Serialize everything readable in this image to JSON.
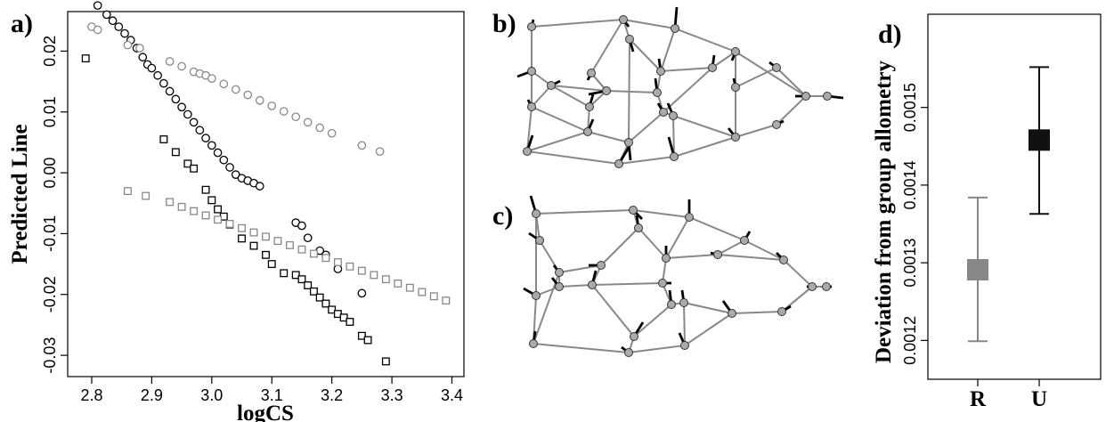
{
  "panels": {
    "a": "a)",
    "b": "b)",
    "c": "c)",
    "d": "d)"
  },
  "chart_data": [
    {
      "panel": "a",
      "type": "scatter",
      "xlabel": "logCS",
      "ylabel": "Predicted Line",
      "xlim": [
        2.76,
        3.42
      ],
      "ylim": [
        -0.0335,
        0.0265
      ],
      "x_ticks": [
        2.8,
        2.9,
        3.0,
        3.1,
        3.2,
        3.3,
        3.4
      ],
      "x_tick_labels": [
        "2.8",
        "2.9",
        "3.0",
        "3.1",
        "3.2",
        "3.3",
        "3.4"
      ],
      "y_ticks": [
        0.02,
        0.01,
        0.0,
        -0.01,
        -0.02,
        -0.03
      ],
      "y_tick_labels": [
        "0.02",
        "0.01",
        "0.00",
        "-0.01",
        "-0.02",
        "-0.03"
      ],
      "series": [
        {
          "marker": "circle",
          "color": "#000000",
          "x": [
            2.81,
            2.825,
            2.835,
            2.845,
            2.855,
            2.865,
            2.875,
            2.885,
            2.893,
            2.9,
            2.91,
            2.92,
            2.93,
            2.94,
            2.95,
            2.96,
            2.97,
            2.98,
            2.99,
            3.0,
            3.01,
            3.02,
            3.03,
            3.04,
            3.05,
            3.06,
            3.07,
            3.08
          ],
          "y": [
            0.0275,
            0.026,
            0.025,
            0.024,
            0.0229,
            0.0218,
            0.0205,
            0.019,
            0.0178,
            0.0172,
            0.016,
            0.0147,
            0.0134,
            0.0121,
            0.0108,
            0.0096,
            0.0083,
            0.007,
            0.0057,
            0.0045,
            0.0033,
            0.0021,
            0.0009,
            -0.0003,
            -0.0009,
            -0.0013,
            -0.0017,
            -0.0022
          ]
        },
        {
          "marker": "circle",
          "color": "#888888",
          "x": [
            2.8,
            2.81,
            2.86,
            2.88,
            2.93,
            2.95,
            2.97,
            2.98,
            2.99,
            3.0,
            3.02,
            3.04,
            3.06,
            3.08,
            3.1,
            3.12,
            3.14,
            3.16,
            3.18,
            3.2,
            3.25,
            3.28
          ],
          "y": [
            0.024,
            0.0235,
            0.021,
            0.0205,
            0.0183,
            0.0175,
            0.0166,
            0.0163,
            0.016,
            0.0155,
            0.0146,
            0.0137,
            0.0128,
            0.0119,
            0.011,
            0.0101,
            0.0092,
            0.0083,
            0.0074,
            0.0065,
            0.0045,
            0.0035
          ]
        },
        {
          "marker": "square",
          "color": "#000000",
          "x": [
            2.79,
            2.92,
            2.94,
            2.96,
            2.97,
            2.99,
            3.0,
            3.01,
            3.02,
            3.03,
            3.05,
            3.07,
            3.09,
            3.1,
            3.12,
            3.14,
            3.15,
            3.16,
            3.17,
            3.18,
            3.19,
            3.2,
            3.21,
            3.22,
            3.23,
            3.25,
            3.26,
            3.29
          ],
          "y": [
            0.0188,
            0.0055,
            0.0034,
            0.0015,
            0.0007,
            -0.0028,
            -0.0045,
            -0.006,
            -0.0072,
            -0.0085,
            -0.0108,
            -0.012,
            -0.0135,
            -0.015,
            -0.0165,
            -0.0168,
            -0.0175,
            -0.0185,
            -0.0195,
            -0.0205,
            -0.0215,
            -0.0225,
            -0.0232,
            -0.0238,
            -0.0245,
            -0.0268,
            -0.0275,
            -0.031
          ]
        },
        {
          "marker": "circle",
          "color": "#000000",
          "x": [
            3.14,
            3.15,
            3.16,
            3.18,
            3.19,
            3.21,
            3.25
          ],
          "y": [
            -0.0082,
            -0.0087,
            -0.0107,
            -0.0128,
            -0.0135,
            -0.0158,
            -0.0198
          ]
        },
        {
          "marker": "square",
          "color": "#888888",
          "x": [
            2.86,
            2.89,
            2.93,
            2.95,
            2.97,
            2.99,
            3.01,
            3.03,
            3.05,
            3.07,
            3.09,
            3.11,
            3.13,
            3.15,
            3.17,
            3.19,
            3.21,
            3.23,
            3.25,
            3.27,
            3.29,
            3.31,
            3.33,
            3.35,
            3.37,
            3.39
          ],
          "y": [
            -0.003,
            -0.0038,
            -0.0048,
            -0.0056,
            -0.0063,
            -0.007,
            -0.0077,
            -0.0084,
            -0.0091,
            -0.0098,
            -0.0105,
            -0.0112,
            -0.0119,
            -0.0126,
            -0.0133,
            -0.014,
            -0.0147,
            -0.0154,
            -0.0161,
            -0.0168,
            -0.0175,
            -0.0182,
            -0.0189,
            -0.0196,
            -0.0203,
            -0.021
          ]
        }
      ]
    },
    {
      "panel": "d",
      "type": "errorbar",
      "ylabel": "Deviation from group allometry",
      "ylim": [
        0.00115,
        0.00162
      ],
      "y_ticks": [
        0.0012,
        0.0013,
        0.0014,
        0.0015
      ],
      "y_tick_labels": [
        "0.0012",
        "0.0013",
        "0.0014",
        "0.0015"
      ],
      "categories": [
        "R",
        "U"
      ],
      "values": [
        0.001291,
        0.001458
      ],
      "lower": [
        0.001199,
        0.001363
      ],
      "upper": [
        0.001384,
        0.001552
      ],
      "colors": [
        "#888888",
        "#111111"
      ]
    }
  ],
  "landmarks": {
    "b": {
      "points": [
        [
          597,
          30
        ],
        [
          597,
          80
        ],
        [
          619,
          96
        ],
        [
          597,
          120
        ],
        [
          592,
          170
        ],
        [
          664,
          82
        ],
        [
          681,
          102
        ],
        [
          662,
          120
        ],
        [
          660,
          148
        ],
        [
          700,
          22
        ],
        [
          707,
          44
        ],
        [
          758,
          32
        ],
        [
          742,
          80
        ],
        [
          738,
          104
        ],
        [
          745,
          126
        ],
        [
          706,
          160
        ],
        [
          695,
          184
        ],
        [
          756,
          130
        ],
        [
          757,
          176
        ],
        [
          800,
          76
        ],
        [
          826,
          58
        ],
        [
          826,
          98
        ],
        [
          826,
          154
        ],
        [
          872,
          76
        ],
        [
          872,
          140
        ],
        [
          905,
          108
        ],
        [
          929,
          108
        ]
      ],
      "vectors": [
        [
          2,
          -8
        ],
        [
          -16,
          6
        ],
        [
          10,
          -5
        ],
        [
          -4,
          -8
        ],
        [
          6,
          -18
        ],
        [
          -4,
          8
        ],
        [
          -20,
          4
        ],
        [
          4,
          -14
        ],
        [
          6,
          -14
        ],
        [
          6,
          8
        ],
        [
          4,
          14
        ],
        [
          2,
          -24
        ],
        [
          -2,
          -14
        ],
        [
          -2,
          -16
        ],
        [
          -6,
          -10
        ],
        [
          2,
          20
        ],
        [
          12,
          -20
        ],
        [
          -6,
          -14
        ],
        [
          -6,
          -22
        ],
        [
          2,
          -14
        ],
        [
          -4,
          10
        ],
        [
          -2,
          -10
        ],
        [
          -8,
          -10
        ],
        [
          -8,
          -6
        ],
        [
          8,
          -4
        ],
        [
          -12,
          0
        ],
        [
          18,
          2
        ]
      ],
      "edges": [
        [
          0,
          9
        ],
        [
          9,
          11
        ],
        [
          11,
          20
        ],
        [
          20,
          25
        ],
        [
          25,
          24
        ],
        [
          24,
          22
        ],
        [
          22,
          18
        ],
        [
          18,
          16
        ],
        [
          16,
          4
        ],
        [
          4,
          3
        ],
        [
          3,
          1
        ],
        [
          1,
          0
        ],
        [
          1,
          2
        ],
        [
          2,
          3
        ],
        [
          2,
          6
        ],
        [
          6,
          5
        ],
        [
          5,
          9
        ],
        [
          5,
          6
        ],
        [
          9,
          10
        ],
        [
          10,
          12
        ],
        [
          12,
          11
        ],
        [
          10,
          15
        ],
        [
          15,
          16
        ],
        [
          6,
          7
        ],
        [
          7,
          8
        ],
        [
          8,
          15
        ],
        [
          6,
          13
        ],
        [
          13,
          12
        ],
        [
          13,
          14
        ],
        [
          14,
          17
        ],
        [
          17,
          18
        ],
        [
          14,
          15
        ],
        [
          17,
          22
        ],
        [
          14,
          19
        ],
        [
          19,
          12
        ],
        [
          19,
          20
        ],
        [
          20,
          21
        ],
        [
          21,
          23
        ],
        [
          23,
          25
        ],
        [
          21,
          22
        ],
        [
          2,
          7
        ],
        [
          4,
          8
        ],
        [
          3,
          8
        ],
        [
          0,
          1
        ],
        [
          25,
          26
        ]
      ]
    },
    "c": {
      "points": [
        [
          602,
          240
        ],
        [
          606,
          270
        ],
        [
          628,
          306
        ],
        [
          628,
          322
        ],
        [
          602,
          332
        ],
        [
          599,
          386
        ],
        [
          675,
          298
        ],
        [
          665,
          320
        ],
        [
          711,
          236
        ],
        [
          717,
          256
        ],
        [
          774,
          244
        ],
        [
          748,
          290
        ],
        [
          744,
          318
        ],
        [
          768,
          340
        ],
        [
          754,
          342
        ],
        [
          712,
          378
        ],
        [
          706,
          396
        ],
        [
          769,
          388
        ],
        [
          822,
          352
        ],
        [
          836,
          270
        ],
        [
          806,
          286
        ],
        [
          880,
          292
        ],
        [
          878,
          350
        ],
        [
          912,
          322
        ],
        [
          928,
          322
        ]
      ],
      "vectors": [
        [
          -6,
          -20
        ],
        [
          -12,
          -8
        ],
        [
          -6,
          -8
        ],
        [
          -8,
          -10
        ],
        [
          -14,
          -8
        ],
        [
          2,
          -14
        ],
        [
          -14,
          0
        ],
        [
          4,
          -16
        ],
        [
          10,
          10
        ],
        [
          -2,
          -14
        ],
        [
          0,
          -20
        ],
        [
          0,
          -14
        ],
        [
          10,
          0
        ],
        [
          -2,
          -14
        ],
        [
          -2,
          -16
        ],
        [
          10,
          -16
        ],
        [
          -8,
          -6
        ],
        [
          -6,
          -14
        ],
        [
          -10,
          -14
        ],
        [
          6,
          -10
        ],
        [
          -8,
          -2
        ],
        [
          -8,
          -8
        ],
        [
          10,
          -6
        ],
        [
          -6,
          0
        ],
        [
          6,
          0
        ]
      ],
      "edges": [
        [
          0,
          8
        ],
        [
          8,
          10
        ],
        [
          10,
          19
        ],
        [
          19,
          21
        ],
        [
          21,
          23
        ],
        [
          23,
          22
        ],
        [
          22,
          18
        ],
        [
          18,
          17
        ],
        [
          17,
          16
        ],
        [
          16,
          5
        ],
        [
          5,
          4
        ],
        [
          4,
          3
        ],
        [
          3,
          2
        ],
        [
          2,
          1
        ],
        [
          1,
          0
        ],
        [
          8,
          9
        ],
        [
          9,
          11
        ],
        [
          11,
          10
        ],
        [
          9,
          6
        ],
        [
          6,
          7
        ],
        [
          7,
          15
        ],
        [
          15,
          16
        ],
        [
          6,
          2
        ],
        [
          3,
          7
        ],
        [
          7,
          12
        ],
        [
          12,
          11
        ],
        [
          12,
          14
        ],
        [
          14,
          13
        ],
        [
          13,
          18
        ],
        [
          14,
          15
        ],
        [
          11,
          20
        ],
        [
          20,
          19
        ],
        [
          20,
          21
        ],
        [
          13,
          17
        ],
        [
          0,
          4
        ],
        [
          22,
          23
        ],
        [
          23,
          24
        ],
        [
          2,
          5
        ]
      ]
    }
  }
}
